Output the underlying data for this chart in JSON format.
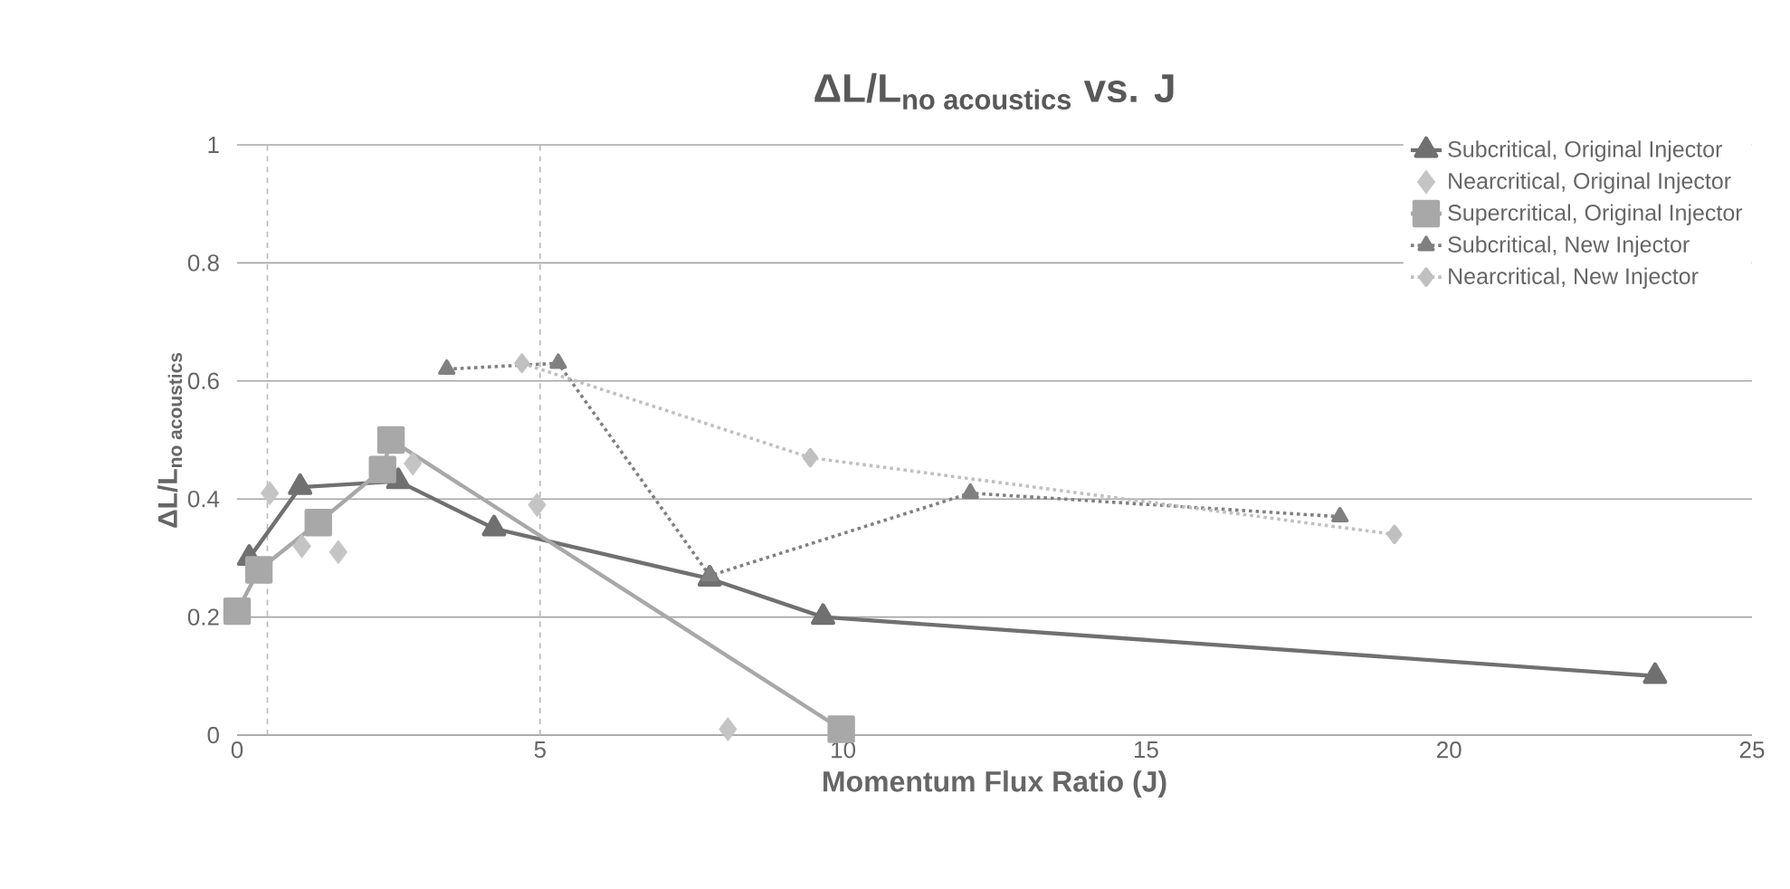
{
  "chart_data": {
    "type": "line",
    "title": "\\text{ΔL/L}_{\\text{no acoustics}}\\text{ vs. J}",
    "xlabel": "Momentum Flux Ratio (J)",
    "ylabel": "\\text{ΔL/L}_{\\text{no acoustics}}",
    "xlim": [
      0,
      25
    ],
    "xticks": [
      0,
      5,
      10,
      15,
      20,
      25
    ],
    "ylim": [
      0,
      1
    ],
    "yticks": [
      0,
      0.2,
      0.4,
      0.6,
      0.8,
      1
    ],
    "grid": "y",
    "legend": "top right",
    "ref_lines": [
      {
        "axis": "x",
        "value": 0.5,
        "line_style": "dashed",
        "color": "#b8b8b8"
      },
      {
        "axis": "x",
        "value": 5,
        "line_style": "dashed",
        "color": "#b8b8b8"
      }
    ],
    "series": [
      {
        "name": "Subcritical, Original Injector",
        "color": "#707070",
        "marker": "triangle",
        "line_style": "solid",
        "x": [
          0.2,
          1.04,
          2.66,
          4.24,
          7.8,
          9.67,
          23.4
        ],
        "values": [
          0.3,
          0.42,
          0.43,
          0.35,
          0.265,
          0.2,
          0.1
        ]
      },
      {
        "name": "Nearcritical, Original Injector",
        "type": "scatter",
        "color": "#c4c4c4",
        "marker": "diamond",
        "x": [
          0.54,
          1.07,
          1.67,
          2.9,
          4.95,
          8.1
        ],
        "values": [
          0.41,
          0.32,
          0.31,
          0.46,
          0.39,
          0.01
        ]
      },
      {
        "name": "Supercritical, Original Injector",
        "color": "#a8a8a8",
        "marker": "square",
        "line_style": "solid",
        "x": [
          0,
          0.36,
          1.34,
          2.4,
          2.54,
          9.97
        ],
        "values": [
          0.21,
          0.28,
          0.36,
          0.45,
          0.5,
          0.01
        ]
      },
      {
        "name": "Subcritical, New Injector",
        "color": "#808080",
        "marker": "triangle",
        "line_style": "dotted",
        "x": [
          3.46,
          5.3,
          7.8,
          12.1,
          18.2
        ],
        "values": [
          0.62,
          0.63,
          0.27,
          0.41,
          0.37
        ]
      },
      {
        "name": "Nearcritical, New Injector",
        "color": "#c0c0c0",
        "marker": "diamond",
        "line_style": "dotted",
        "x": [
          4.7,
          9.46,
          19.1
        ],
        "values": [
          0.63,
          0.47,
          0.34
        ]
      }
    ]
  }
}
